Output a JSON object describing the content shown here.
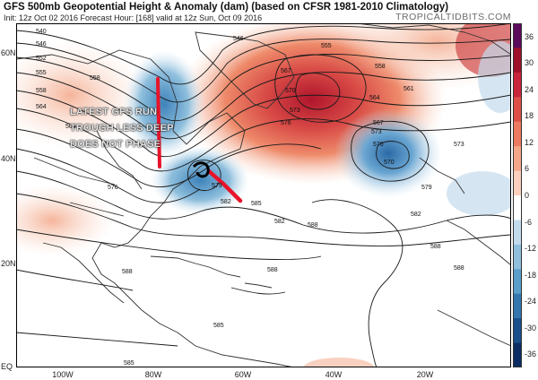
{
  "header": {
    "title": "GFS 500mb Geopotential Height & Anomaly (dam) (based on CFSR 1981-2010 Climatology)",
    "subtitle": "Init: 12z Oct 02 2016   Forecast Hour: [168]   valid at 12z Sun, Oct 09 2016",
    "credit": "TROPICALTIDBITS.COM"
  },
  "annotation": {
    "lines": [
      "LATEST GFS RUN",
      "TROUGH LESS DEEP",
      "DOES NOT PHASE"
    ],
    "color": "#e6e6e6"
  },
  "axes": {
    "lat_labels": [
      "60N",
      "40N",
      "20N",
      "EQ"
    ],
    "lon_labels": [
      "100W",
      "80W",
      "60W",
      "40W",
      "20W"
    ]
  },
  "colorbar": {
    "labels": [
      "36",
      "30",
      "24",
      "18",
      "12",
      "6",
      "0",
      "-6",
      "-12",
      "-18",
      "-24",
      "-30",
      "-36"
    ],
    "colors": [
      "#5c0a5c",
      "#a0102a",
      "#c8243a",
      "#dc5048",
      "#ec7a60",
      "#f5a688",
      "#fbd0bc",
      "#ffffff",
      "#c3dced",
      "#8fbfdd",
      "#5a9ec9",
      "#3476ad",
      "#1a4f8a",
      "#0c2d63"
    ]
  },
  "contour_labels": [
    "540",
    "546",
    "552",
    "555",
    "558",
    "561",
    "564",
    "567",
    "570",
    "573",
    "576",
    "579",
    "582",
    "585",
    "588"
  ],
  "map": {
    "ocean_color": "#ffffff",
    "land_outline_color": "#333333",
    "contour_color": "#1a1a1a",
    "trough_marker_color": "#e8132a"
  }
}
